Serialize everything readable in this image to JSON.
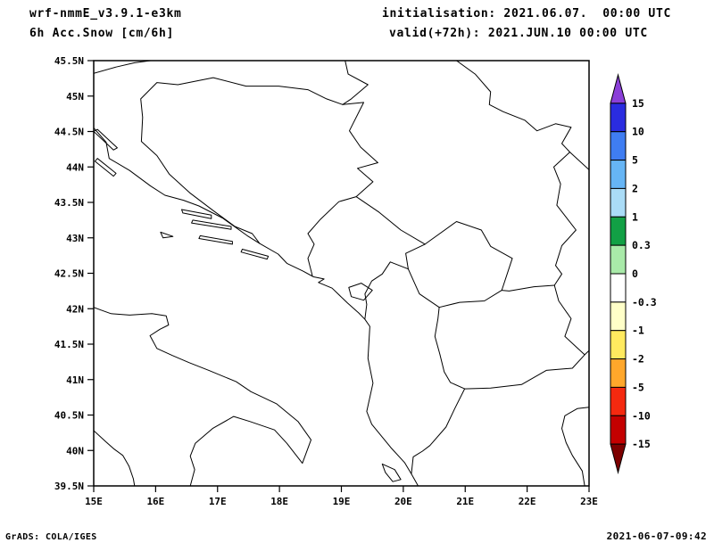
{
  "header": {
    "model": "wrf-nmmE_v3.9.1-e3km",
    "field": "6h Acc.Snow [cm/6h]",
    "init_line": "initialisation: 2021.06.07.  00:00 UTC",
    "valid_line": "valid(+72h): 2021.JUN.10 00:00 UTC"
  },
  "footer": {
    "credit": "GrADS: COLA/IGES",
    "timestamp": "2021-06-07-09:42"
  },
  "chart_data": {
    "type": "map-contour",
    "title": "6h Acc.Snow [cm/6h]",
    "model": "wrf-nmmE_v3.9.1-e3km",
    "lon_range_deg_e": [
      15,
      23
    ],
    "lat_range_deg_n": [
      39.5,
      45.5
    ],
    "lat_ticks": [
      "45.5N",
      "45N",
      "44.5N",
      "44N",
      "43.5N",
      "43N",
      "42.5N",
      "42N",
      "41.5N",
      "41N",
      "40.5N",
      "40N",
      "39.5N"
    ],
    "lon_ticks": [
      "15E",
      "16E",
      "17E",
      "18E",
      "19E",
      "20E",
      "21E",
      "22E",
      "23E"
    ],
    "field_values_note": "no shaded snow values anywhere in the domain (field is zero); only coastlines and country borders are drawn",
    "colorbar": {
      "labels": [
        "15",
        "10",
        "5",
        "2",
        "1",
        "0.3",
        "0",
        "-0.3",
        "-1",
        "-2",
        "-5",
        "-10",
        "-15"
      ],
      "colors": [
        "#8b3fd9",
        "#2a2ce0",
        "#3f7df2",
        "#66b5f5",
        "#aadcf7",
        "#12a045",
        "#a9eaa9",
        "#ffffff",
        "#ffffc8",
        "#ffea5f",
        "#ffa72b",
        "#f5290f",
        "#c40000",
        "#7d0000"
      ]
    },
    "features": [
      {
        "name": "coastline-dalmatia-albania",
        "closed": false,
        "pts": [
          [
            15.0,
            44.55
          ],
          [
            15.2,
            44.35
          ],
          [
            15.25,
            44.12
          ],
          [
            15.58,
            43.95
          ],
          [
            15.92,
            43.73
          ],
          [
            16.15,
            43.6
          ],
          [
            16.45,
            43.53
          ],
          [
            16.7,
            43.45
          ],
          [
            17.08,
            43.28
          ],
          [
            17.48,
            43.03
          ],
          [
            17.68,
            42.92
          ],
          [
            17.98,
            42.77
          ],
          [
            18.12,
            42.64
          ],
          [
            18.38,
            42.53
          ],
          [
            18.55,
            42.45
          ],
          [
            18.72,
            42.42
          ],
          [
            18.63,
            42.37
          ],
          [
            18.85,
            42.29
          ],
          [
            19.1,
            42.08
          ],
          [
            19.28,
            41.94
          ],
          [
            19.38,
            41.85
          ],
          [
            19.46,
            41.75
          ],
          [
            19.43,
            41.3
          ],
          [
            19.51,
            40.95
          ],
          [
            19.41,
            40.55
          ],
          [
            19.49,
            40.37
          ],
          [
            19.8,
            40.04
          ],
          [
            20.02,
            39.83
          ],
          [
            20.13,
            39.67
          ],
          [
            20.24,
            39.5
          ]
        ]
      },
      {
        "name": "island-pag",
        "closed": true,
        "pts": [
          [
            15.0,
            44.5
          ],
          [
            15.32,
            44.24
          ],
          [
            15.38,
            44.27
          ],
          [
            15.06,
            44.53
          ]
        ]
      },
      {
        "name": "island-dugi-otok",
        "closed": true,
        "pts": [
          [
            15.02,
            44.08
          ],
          [
            15.32,
            43.87
          ],
          [
            15.36,
            43.91
          ],
          [
            15.06,
            44.12
          ]
        ]
      },
      {
        "name": "island-brac",
        "closed": true,
        "pts": [
          [
            16.42,
            43.4
          ],
          [
            16.9,
            43.32
          ],
          [
            16.9,
            43.27
          ],
          [
            16.44,
            43.35
          ]
        ]
      },
      {
        "name": "island-hvar",
        "closed": true,
        "pts": [
          [
            16.58,
            43.21
          ],
          [
            17.22,
            43.12
          ],
          [
            17.22,
            43.16
          ],
          [
            16.6,
            43.25
          ]
        ]
      },
      {
        "name": "island-korcula",
        "closed": true,
        "pts": [
          [
            16.7,
            42.99
          ],
          [
            17.24,
            42.91
          ],
          [
            17.24,
            42.95
          ],
          [
            16.72,
            43.03
          ]
        ]
      },
      {
        "name": "island-mljet",
        "closed": true,
        "pts": [
          [
            17.38,
            42.8
          ],
          [
            17.8,
            42.7
          ],
          [
            17.82,
            42.74
          ],
          [
            17.4,
            42.84
          ]
        ]
      },
      {
        "name": "island-vis",
        "closed": true,
        "pts": [
          [
            16.08,
            43.08
          ],
          [
            16.28,
            43.02
          ],
          [
            16.12,
            43.0
          ]
        ]
      },
      {
        "name": "coastline-italy-tyrrhenian",
        "closed": false,
        "pts": [
          [
            15.0,
            40.28
          ],
          [
            15.2,
            40.12
          ],
          [
            15.33,
            40.02
          ],
          [
            15.47,
            39.93
          ],
          [
            15.57,
            39.78
          ],
          [
            15.64,
            39.6
          ],
          [
            15.66,
            39.5
          ]
        ]
      },
      {
        "name": "coastline-italy-adriatic",
        "closed": false,
        "pts": [
          [
            16.56,
            39.5
          ],
          [
            16.63,
            39.73
          ],
          [
            16.56,
            39.92
          ],
          [
            16.64,
            40.1
          ],
          [
            16.92,
            40.31
          ],
          [
            17.26,
            40.48
          ],
          [
            17.52,
            40.41
          ],
          [
            17.92,
            40.29
          ],
          [
            18.12,
            40.1
          ],
          [
            18.37,
            39.82
          ],
          [
            18.51,
            40.15
          ],
          [
            18.3,
            40.41
          ],
          [
            17.95,
            40.66
          ],
          [
            17.54,
            40.83
          ],
          [
            17.3,
            40.97
          ],
          [
            16.86,
            41.13
          ],
          [
            16.54,
            41.24
          ],
          [
            16.27,
            41.34
          ],
          [
            16.02,
            41.44
          ],
          [
            15.91,
            41.62
          ],
          [
            16.07,
            41.71
          ],
          [
            16.21,
            41.77
          ],
          [
            16.17,
            41.9
          ],
          [
            15.94,
            41.93
          ],
          [
            15.58,
            41.91
          ],
          [
            15.28,
            41.93
          ],
          [
            15.12,
            41.98
          ],
          [
            15.0,
            42.02
          ]
        ]
      },
      {
        "name": "lake-scutari",
        "closed": true,
        "pts": [
          [
            19.12,
            42.3
          ],
          [
            19.32,
            42.36
          ],
          [
            19.5,
            42.26
          ],
          [
            19.36,
            42.12
          ],
          [
            19.16,
            42.17
          ]
        ]
      },
      {
        "name": "border-slovenia-croatia",
        "closed": false,
        "pts": [
          [
            15.0,
            45.32
          ],
          [
            15.36,
            45.41
          ],
          [
            15.66,
            45.47
          ],
          [
            15.92,
            45.5
          ]
        ]
      },
      {
        "name": "border-bosnia",
        "closed": false,
        "pts": [
          [
            17.68,
            42.92
          ],
          [
            17.56,
            43.06
          ],
          [
            17.28,
            43.16
          ],
          [
            16.92,
            43.39
          ],
          [
            16.56,
            43.63
          ],
          [
            16.22,
            43.9
          ],
          [
            16.02,
            44.16
          ],
          [
            15.77,
            44.36
          ],
          [
            15.79,
            44.7
          ],
          [
            15.76,
            44.96
          ],
          [
            16.02,
            45.19
          ],
          [
            16.36,
            45.16
          ],
          [
            16.93,
            45.26
          ],
          [
            17.46,
            45.14
          ],
          [
            17.99,
            45.14
          ],
          [
            18.46,
            45.09
          ],
          [
            18.76,
            44.96
          ],
          [
            19.02,
            44.88
          ],
          [
            19.36,
            44.91
          ],
          [
            19.13,
            44.51
          ],
          [
            19.31,
            44.28
          ],
          [
            19.59,
            44.06
          ],
          [
            19.26,
            43.98
          ],
          [
            19.51,
            43.79
          ],
          [
            19.24,
            43.58
          ],
          [
            18.96,
            43.51
          ],
          [
            18.66,
            43.26
          ],
          [
            18.46,
            43.06
          ],
          [
            18.56,
            42.91
          ],
          [
            18.46,
            42.71
          ],
          [
            18.53,
            42.47
          ]
        ]
      },
      {
        "name": "border-croatia-serbia",
        "closed": false,
        "pts": [
          [
            19.06,
            45.5
          ],
          [
            19.11,
            45.31
          ],
          [
            19.43,
            45.16
          ],
          [
            19.16,
            44.96
          ],
          [
            19.02,
            44.88
          ]
        ]
      },
      {
        "name": "border-serbia-romania-danube",
        "closed": false,
        "pts": [
          [
            20.86,
            45.5
          ],
          [
            21.16,
            45.31
          ],
          [
            21.41,
            45.06
          ],
          [
            21.39,
            44.88
          ],
          [
            21.61,
            44.78
          ],
          [
            21.96,
            44.66
          ],
          [
            22.16,
            44.51
          ],
          [
            22.46,
            44.61
          ],
          [
            22.71,
            44.56
          ],
          [
            22.56,
            44.33
          ],
          [
            22.69,
            44.21
          ],
          [
            23.0,
            43.96
          ]
        ]
      },
      {
        "name": "border-serbia-bulgaria",
        "closed": false,
        "pts": [
          [
            22.69,
            44.21
          ],
          [
            22.43,
            44.0
          ],
          [
            22.54,
            43.76
          ],
          [
            22.48,
            43.46
          ],
          [
            22.79,
            43.11
          ],
          [
            22.56,
            42.89
          ],
          [
            22.46,
            42.61
          ],
          [
            22.56,
            42.49
          ],
          [
            22.44,
            42.33
          ]
        ]
      },
      {
        "name": "border-serbia-macedonia",
        "closed": false,
        "pts": [
          [
            22.44,
            42.33
          ],
          [
            22.11,
            42.31
          ],
          [
            21.71,
            42.25
          ],
          [
            21.59,
            42.26
          ]
        ]
      },
      {
        "name": "border-macedonia-bulgaria",
        "closed": false,
        "pts": [
          [
            22.44,
            42.33
          ],
          [
            22.51,
            42.11
          ],
          [
            22.71,
            41.86
          ],
          [
            22.61,
            41.61
          ],
          [
            22.93,
            41.35
          ]
        ]
      },
      {
        "name": "border-macedonia-greece",
        "closed": false,
        "pts": [
          [
            22.93,
            41.35
          ],
          [
            22.73,
            41.16
          ],
          [
            22.31,
            41.13
          ],
          [
            21.91,
            40.93
          ],
          [
            21.41,
            40.88
          ],
          [
            20.99,
            40.87
          ]
        ]
      },
      {
        "name": "border-greece-bulgaria",
        "closed": false,
        "pts": [
          [
            22.93,
            41.35
          ],
          [
            23.0,
            41.41
          ]
        ]
      },
      {
        "name": "border-albania-greece",
        "closed": false,
        "pts": [
          [
            20.99,
            40.87
          ],
          [
            20.83,
            40.59
          ],
          [
            20.69,
            40.33
          ],
          [
            20.43,
            40.07
          ],
          [
            20.31,
            39.99
          ],
          [
            20.16,
            39.91
          ],
          [
            20.13,
            39.67
          ]
        ]
      },
      {
        "name": "border-albania-macedonia",
        "closed": false,
        "pts": [
          [
            20.99,
            40.87
          ],
          [
            20.76,
            40.96
          ],
          [
            20.66,
            41.11
          ],
          [
            20.59,
            41.36
          ],
          [
            20.51,
            41.61
          ],
          [
            20.56,
            41.86
          ],
          [
            20.58,
            42.02
          ]
        ]
      },
      {
        "name": "border-kosovo-albania",
        "closed": false,
        "pts": [
          [
            20.58,
            42.02
          ],
          [
            20.26,
            42.21
          ],
          [
            20.08,
            42.56
          ]
        ]
      },
      {
        "name": "border-kosovo-montenegro",
        "closed": false,
        "pts": [
          [
            20.08,
            42.56
          ],
          [
            20.04,
            42.78
          ],
          [
            20.35,
            42.91
          ]
        ]
      },
      {
        "name": "border-kosovo-serbia",
        "closed": false,
        "pts": [
          [
            20.35,
            42.91
          ],
          [
            20.86,
            43.23
          ],
          [
            21.26,
            43.11
          ],
          [
            21.41,
            42.88
          ],
          [
            21.76,
            42.71
          ],
          [
            21.59,
            42.26
          ]
        ]
      },
      {
        "name": "border-kosovo-macedonia",
        "closed": false,
        "pts": [
          [
            21.59,
            42.26
          ],
          [
            21.31,
            42.11
          ],
          [
            20.91,
            42.09
          ],
          [
            20.58,
            42.02
          ]
        ]
      },
      {
        "name": "border-montenegro-serbia",
        "closed": false,
        "pts": [
          [
            19.24,
            43.58
          ],
          [
            19.61,
            43.36
          ],
          [
            19.96,
            43.11
          ],
          [
            20.35,
            42.91
          ]
        ]
      },
      {
        "name": "border-montenegro-albania",
        "closed": false,
        "pts": [
          [
            20.08,
            42.56
          ],
          [
            19.79,
            42.66
          ],
          [
            19.66,
            42.49
          ],
          [
            19.49,
            42.39
          ],
          [
            19.38,
            42.21
          ],
          [
            19.41,
            42.06
          ],
          [
            19.38,
            41.86
          ]
        ]
      },
      {
        "name": "coastline-greece-thermaic",
        "closed": false,
        "pts": [
          [
            23.0,
            40.61
          ],
          [
            22.81,
            40.59
          ],
          [
            22.61,
            40.49
          ],
          [
            22.56,
            40.31
          ],
          [
            22.63,
            40.11
          ],
          [
            22.73,
            39.93
          ],
          [
            22.89,
            39.71
          ],
          [
            22.93,
            39.5
          ]
        ]
      },
      {
        "name": "island-corfu",
        "closed": true,
        "pts": [
          [
            19.66,
            39.81
          ],
          [
            19.86,
            39.73
          ],
          [
            19.96,
            39.59
          ],
          [
            19.83,
            39.56
          ],
          [
            19.71,
            39.69
          ]
        ]
      }
    ]
  }
}
